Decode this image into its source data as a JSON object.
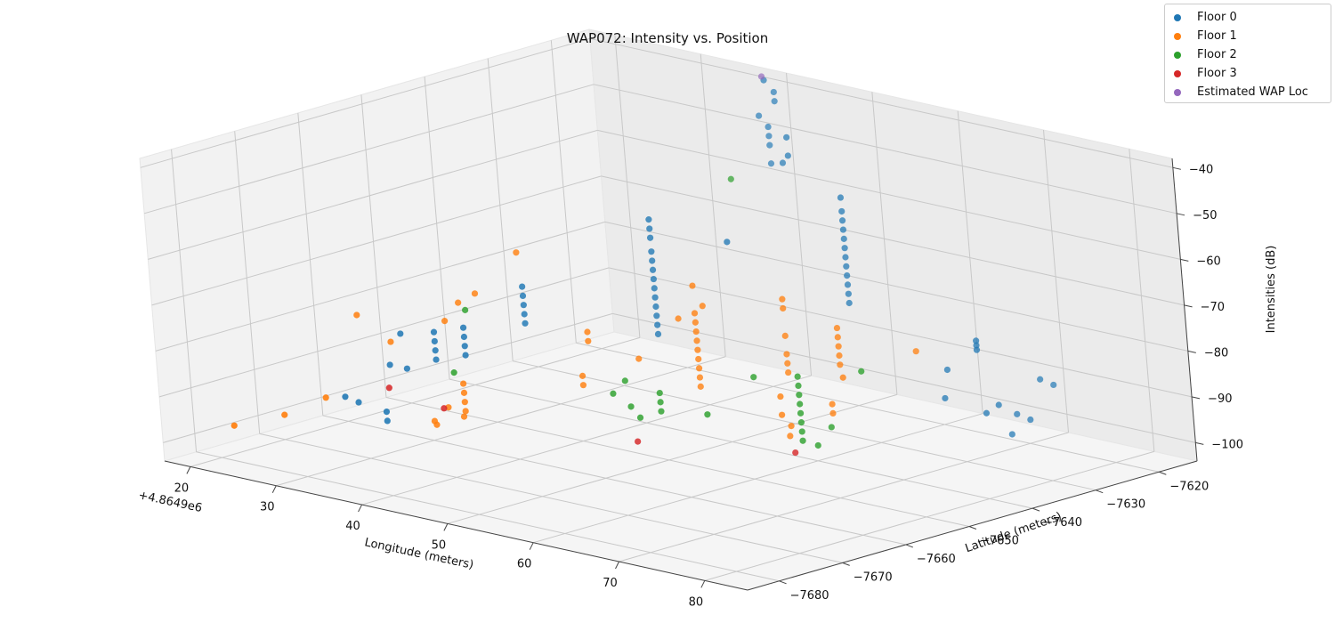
{
  "chart_data": {
    "type": "scatter",
    "projection": "3d",
    "title": "WAP072: Intensity vs. Position",
    "xlabel": "Longitude (meters)",
    "ylabel": "Latitude (meters)",
    "zlabel": "Intensities (dB)",
    "x_offset_label": "+4.8649e6",
    "xlim": [
      17,
      85
    ],
    "ylim": [
      -7685,
      -7614
    ],
    "zlim": [
      -104,
      -38
    ],
    "x_ticks": [
      20,
      30,
      40,
      50,
      60,
      70,
      80
    ],
    "y_ticks": [
      -7680,
      -7670,
      -7660,
      -7650,
      -7640,
      -7630,
      -7620
    ],
    "z_ticks": [
      -100,
      -90,
      -80,
      -70,
      -60,
      -50,
      -40
    ],
    "grid": true,
    "legend": {
      "placement": "top-right"
    },
    "series": [
      {
        "name": "Floor 0",
        "color": "#1f77b4",
        "points": [
          [
            71,
            -7617,
            -92
          ],
          [
            71,
            -7619,
            -90
          ],
          [
            71,
            -7621,
            -98
          ],
          [
            71,
            -7623,
            -96
          ],
          [
            71,
            -7624,
            -100
          ],
          [
            72,
            -7627,
            -92
          ],
          [
            72,
            -7629,
            -93
          ],
          [
            73,
            -7631,
            -77
          ],
          [
            73,
            -7631,
            -76
          ],
          [
            73,
            -7631,
            -78
          ],
          [
            67,
            -7628,
            -86
          ],
          [
            68,
            -7630,
            -91
          ],
          [
            56,
            -7628,
            -53
          ],
          [
            56,
            -7628,
            -56
          ],
          [
            56,
            -7628,
            -58
          ],
          [
            56,
            -7628,
            -60
          ],
          [
            56,
            -7628,
            -62
          ],
          [
            56,
            -7628,
            -64
          ],
          [
            56,
            -7628,
            -66
          ],
          [
            56,
            -7628,
            -68
          ],
          [
            56,
            -7628,
            -70
          ],
          [
            56,
            -7628,
            -72
          ],
          [
            56,
            -7628,
            -74
          ],
          [
            56,
            -7628,
            -76
          ],
          [
            49,
            -7637,
            -62
          ],
          [
            44,
            -7620,
            -52
          ],
          [
            44,
            -7620,
            -48
          ],
          [
            41,
            -7617,
            -56
          ],
          [
            38,
            -7615,
            -40
          ],
          [
            36,
            -7611,
            -45
          ],
          [
            36,
            -7611,
            -47
          ],
          [
            34,
            -7611,
            -51
          ],
          [
            35,
            -7611,
            -53
          ],
          [
            35,
            -7611,
            -55
          ],
          [
            35,
            -7611,
            -57
          ],
          [
            35,
            -7611,
            -61
          ],
          [
            43,
            -7641,
            -58
          ],
          [
            43,
            -7641,
            -60
          ],
          [
            43,
            -7641,
            -62
          ],
          [
            43,
            -7641,
            -65
          ],
          [
            43,
            -7641,
            -67
          ],
          [
            43,
            -7641,
            -69
          ],
          [
            43,
            -7641,
            -71
          ],
          [
            43,
            -7641,
            -73
          ],
          [
            43,
            -7641,
            -75
          ],
          [
            43,
            -7641,
            -77
          ],
          [
            43,
            -7641,
            -79
          ],
          [
            43,
            -7641,
            -81
          ],
          [
            43,
            -7641,
            -83
          ],
          [
            35,
            -7651,
            -72
          ],
          [
            35,
            -7651,
            -74
          ],
          [
            35,
            -7651,
            -76
          ],
          [
            35,
            -7651,
            -78
          ],
          [
            35,
            -7651,
            -80
          ],
          [
            33,
            -7658,
            -79
          ],
          [
            33,
            -7658,
            -81
          ],
          [
            33,
            -7658,
            -83
          ],
          [
            33,
            -7658,
            -85
          ],
          [
            31,
            -7660,
            -80
          ],
          [
            31,
            -7660,
            -82
          ],
          [
            31,
            -7660,
            -84
          ],
          [
            31,
            -7660,
            -86
          ],
          [
            27,
            -7660,
            -82
          ],
          [
            27,
            -7662,
            -88
          ],
          [
            29,
            -7662,
            -88
          ],
          [
            30,
            -7667,
            -95
          ],
          [
            30,
            -7667,
            -97
          ],
          [
            26,
            -7666,
            -95
          ],
          [
            26,
            -7668,
            -93
          ]
        ]
      },
      {
        "name": "Floor 1",
        "color": "#ff7f0e",
        "points": [
          [
            62,
            -7638,
            -75
          ],
          [
            62,
            -7638,
            -77
          ],
          [
            62,
            -7638,
            -79
          ],
          [
            62,
            -7638,
            -81
          ],
          [
            62,
            -7638,
            -83
          ],
          [
            63,
            -7639,
            -85
          ],
          [
            63,
            -7641,
            -90
          ],
          [
            63,
            -7641,
            -92
          ],
          [
            65,
            -7630,
            -82
          ],
          [
            60,
            -7645,
            -88
          ],
          [
            60,
            -7645,
            -92
          ],
          [
            61,
            -7645,
            -94
          ],
          [
            60,
            -7644,
            -97
          ],
          [
            55,
            -7637,
            -72
          ],
          [
            55,
            -7637,
            -74
          ],
          [
            55,
            -7637,
            -80
          ],
          [
            55,
            -7637,
            -84
          ],
          [
            55,
            -7637,
            -86
          ],
          [
            55,
            -7637,
            -88
          ],
          [
            47,
            -7639,
            -76
          ],
          [
            46,
            -7639,
            -72
          ],
          [
            46,
            -7639,
            -78
          ],
          [
            46,
            -7639,
            -80
          ],
          [
            46,
            -7639,
            -82
          ],
          [
            46,
            -7639,
            -84
          ],
          [
            46,
            -7639,
            -86
          ],
          [
            46,
            -7639,
            -88
          ],
          [
            46,
            -7639,
            -90
          ],
          [
            46,
            -7639,
            -92
          ],
          [
            46,
            -7639,
            -94
          ],
          [
            44,
            -7639,
            -80
          ],
          [
            42,
            -7643,
            -88
          ],
          [
            40,
            -7648,
            -81
          ],
          [
            40,
            -7648,
            -83
          ],
          [
            39,
            -7648,
            -91
          ],
          [
            39,
            -7648,
            -93
          ],
          [
            34,
            -7660,
            -90
          ],
          [
            34,
            -7660,
            -92
          ],
          [
            34,
            -7660,
            -94
          ],
          [
            34,
            -7660,
            -96
          ],
          [
            33,
            -7659,
            -98
          ],
          [
            32,
            -7660,
            -96
          ],
          [
            32,
            -7662,
            -99
          ],
          [
            31,
            -7661,
            -99
          ],
          [
            30,
            -7645,
            -69
          ],
          [
            28,
            -7652,
            -78
          ],
          [
            27,
            -7648,
            -78
          ],
          [
            27,
            -7653,
            -82
          ],
          [
            25,
            -7659,
            -85
          ],
          [
            22,
            -7660,
            -80
          ],
          [
            26,
            -7671,
            -92
          ],
          [
            24,
            -7675,
            -95
          ],
          [
            21,
            -7679,
            -97
          ]
        ]
      },
      {
        "name": "Floor 2",
        "color": "#2ca02c",
        "points": [
          [
            63,
            -7646,
            -82
          ],
          [
            63,
            -7646,
            -84
          ],
          [
            63,
            -7646,
            -86
          ],
          [
            63,
            -7646,
            -88
          ],
          [
            63,
            -7646,
            -90
          ],
          [
            63,
            -7646,
            -92
          ],
          [
            63,
            -7646,
            -94
          ],
          [
            63,
            -7646,
            -96
          ],
          [
            64,
            -7645,
            -97
          ],
          [
            65,
            -7644,
            -93
          ],
          [
            66,
            -7640,
            -82
          ],
          [
            57,
            -7645,
            -85
          ],
          [
            55,
            -7650,
            -92
          ],
          [
            48,
            -7648,
            -91
          ],
          [
            48,
            -7648,
            -93
          ],
          [
            48,
            -7648,
            -95
          ],
          [
            47,
            -7650,
            -96
          ],
          [
            46,
            -7650,
            -94
          ],
          [
            44,
            -7650,
            -92
          ],
          [
            44,
            -7648,
            -90
          ],
          [
            37,
            -7620,
            -60
          ],
          [
            33,
            -7660,
            -88
          ],
          [
            28,
            -7651,
            -80
          ]
        ]
      },
      {
        "name": "Floor 3",
        "color": "#d62728",
        "points": [
          [
            62,
            -7646,
            -99
          ],
          [
            48,
            -7652,
            -100
          ],
          [
            33,
            -7662,
            -95
          ],
          [
            29,
            -7665,
            -91
          ]
        ]
      },
      {
        "name": "Estimated WAP Loc",
        "color": "#9467bd",
        "points": [
          [
            37,
            -7614,
            -40
          ]
        ]
      }
    ]
  }
}
